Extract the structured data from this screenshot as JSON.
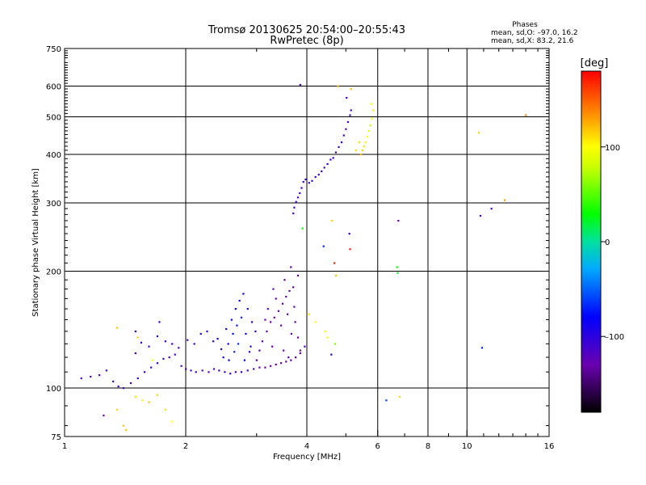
{
  "chart_data": {
    "type": "scatter",
    "title": "Tromsø 20130625 20:54:00–20:55:43",
    "subtitle": "RwPretec (8p)",
    "stats": {
      "heading": "Phases",
      "line_o": "mean, sd,O: –97.0, 16.2",
      "line_x": "mean, sd,X:  83.2, 21.6"
    },
    "xlabel": "Frequency [MHz]",
    "ylabel": "Stationary phase Virtual Height [km]",
    "x_scale": "log",
    "y_scale": "log",
    "xlim": [
      1,
      16
    ],
    "ylim": [
      75,
      750
    ],
    "x_ticks": [
      {
        "value": 1,
        "label": "1"
      },
      {
        "value": 2,
        "label": "2"
      },
      {
        "value": 4,
        "label": "4"
      },
      {
        "value": 6,
        "label": "6"
      },
      {
        "value": 8,
        "label": "8"
      },
      {
        "value": 10,
        "label": "10"
      },
      {
        "value": 16,
        "label": "16"
      }
    ],
    "y_ticks": [
      {
        "value": 75,
        "label": "75"
      },
      {
        "value": 100,
        "label": "100"
      },
      {
        "value": 200,
        "label": "200"
      },
      {
        "value": 300,
        "label": "300"
      },
      {
        "value": 400,
        "label": "400"
      },
      {
        "value": 500,
        "label": "500"
      },
      {
        "value": 600,
        "label": "600"
      },
      {
        "value": 750,
        "label": "750"
      }
    ],
    "x_grid": [
      2,
      4,
      6,
      8,
      10
    ],
    "y_grid": [
      100,
      200,
      300,
      400,
      500,
      600
    ],
    "colorbar": {
      "label": "[deg]",
      "range": [
        -180,
        180
      ],
      "ticks": [
        {
          "value": 100,
          "label": "100"
        },
        {
          "value": 0,
          "label": "0"
        },
        {
          "value": -100,
          "label": "–100"
        }
      ]
    },
    "series": [
      {
        "columns": [
          "frequency_mhz",
          "virtual_height_km",
          "phase_deg"
        ],
        "points": [
          [
            1.1,
            106,
            -120
          ],
          [
            1.16,
            107,
            -118
          ],
          [
            1.22,
            108,
            -115
          ],
          [
            1.27,
            111,
            -112
          ],
          [
            1.32,
            104,
            -110
          ],
          [
            1.36,
            101,
            -108
          ],
          [
            1.4,
            100,
            -112
          ],
          [
            1.46,
            103,
            -110
          ],
          [
            1.52,
            106,
            -105
          ],
          [
            1.58,
            110,
            -110
          ],
          [
            1.64,
            113,
            -108
          ],
          [
            1.7,
            116,
            -110
          ],
          [
            1.76,
            119,
            -112
          ],
          [
            1.82,
            120,
            -115
          ],
          [
            1.88,
            122,
            -110
          ],
          [
            1.95,
            114,
            -118
          ],
          [
            2.0,
            112,
            -115
          ],
          [
            2.06,
            111,
            -118
          ],
          [
            2.12,
            110,
            -120
          ],
          [
            2.2,
            111,
            -115
          ],
          [
            2.28,
            110,
            -118
          ],
          [
            2.35,
            112,
            -116
          ],
          [
            2.42,
            111,
            -112
          ],
          [
            2.5,
            110,
            -115
          ],
          [
            2.58,
            109,
            -110
          ],
          [
            2.66,
            110,
            -112
          ],
          [
            2.75,
            110,
            -105
          ],
          [
            2.85,
            111,
            -110
          ],
          [
            2.95,
            112,
            -118
          ],
          [
            3.05,
            113,
            -125
          ],
          [
            3.15,
            113,
            -128
          ],
          [
            3.25,
            114,
            -130
          ],
          [
            3.35,
            115,
            -132
          ],
          [
            3.45,
            116,
            -130
          ],
          [
            3.55,
            117,
            -128
          ],
          [
            3.65,
            118,
            -126
          ],
          [
            3.75,
            120,
            -124
          ],
          [
            3.85,
            123,
            -122
          ],
          [
            3.95,
            128,
            -120
          ],
          [
            1.5,
            123,
            -110
          ],
          [
            1.55,
            131,
            -108
          ],
          [
            1.62,
            128,
            -112
          ],
          [
            1.7,
            136,
            -105
          ],
          [
            1.78,
            132,
            -110
          ],
          [
            1.85,
            130,
            -105
          ],
          [
            1.92,
            127,
            -112
          ],
          [
            2.02,
            133,
            -108
          ],
          [
            2.1,
            130,
            -110
          ],
          [
            2.18,
            138,
            -104
          ],
          [
            2.26,
            140,
            -100
          ],
          [
            2.34,
            132,
            -106
          ],
          [
            2.45,
            126,
            -100
          ],
          [
            2.52,
            142,
            -90
          ],
          [
            2.6,
            150,
            -85
          ],
          [
            2.66,
            160,
            -80
          ],
          [
            2.72,
            168,
            -85
          ],
          [
            2.78,
            175,
            -88
          ],
          [
            2.85,
            160,
            -92
          ],
          [
            2.92,
            148,
            -100
          ],
          [
            2.98,
            140,
            -104
          ],
          [
            2.55,
            130,
            -82
          ],
          [
            2.62,
            138,
            -75
          ],
          [
            2.68,
            145,
            -72
          ],
          [
            2.75,
            152,
            -70
          ],
          [
            2.82,
            138,
            -80
          ],
          [
            2.9,
            128,
            -90
          ],
          [
            2.4,
            134,
            -88
          ],
          [
            2.48,
            120,
            -92
          ],
          [
            2.56,
            118,
            -78
          ],
          [
            2.64,
            124,
            -70
          ],
          [
            2.7,
            130,
            -65
          ],
          [
            2.8,
            118,
            -85
          ],
          [
            2.88,
            124,
            -95
          ],
          [
            3.05,
            125,
            -118
          ],
          [
            3.1,
            132,
            -125
          ],
          [
            3.18,
            140,
            -130
          ],
          [
            3.25,
            148,
            -128
          ],
          [
            3.32,
            152,
            -130
          ],
          [
            3.4,
            158,
            -132
          ],
          [
            3.48,
            165,
            -135
          ],
          [
            3.55,
            172,
            -130
          ],
          [
            3.62,
            178,
            -132
          ],
          [
            3.7,
            182,
            -135
          ],
          [
            3.2,
            160,
            -128
          ],
          [
            3.35,
            170,
            -133
          ],
          [
            3.45,
            145,
            -127
          ],
          [
            3.58,
            155,
            -129
          ],
          [
            3.66,
            138,
            -131
          ],
          [
            3.74,
            148,
            -133
          ],
          [
            3.8,
            135,
            -130
          ],
          [
            3.85,
            125,
            -126
          ],
          [
            3.5,
            125,
            -124
          ],
          [
            3.15,
            150,
            -122
          ],
          [
            3.0,
            118,
            -120
          ],
          [
            3.28,
            128,
            -125
          ],
          [
            3.6,
            120,
            -127
          ],
          [
            3.72,
            162,
            -134
          ],
          [
            3.52,
            190,
            -136
          ],
          [
            3.8,
            195,
            -138
          ],
          [
            3.3,
            180,
            -130
          ],
          [
            3.65,
            205,
            -135
          ],
          [
            3.7,
            282,
            -115
          ],
          [
            3.72,
            292,
            -110
          ],
          [
            3.76,
            302,
            -112
          ],
          [
            3.8,
            310,
            -115
          ],
          [
            3.84,
            318,
            -112
          ],
          [
            3.88,
            328,
            -110
          ],
          [
            3.92,
            340,
            -108
          ],
          [
            3.97,
            345,
            -110
          ],
          [
            4.05,
            338,
            -112
          ],
          [
            4.12,
            342,
            -110
          ],
          [
            4.2,
            350,
            -108
          ],
          [
            4.28,
            355,
            -112
          ],
          [
            4.35,
            362,
            -110
          ],
          [
            4.42,
            370,
            -108
          ],
          [
            4.5,
            378,
            -105
          ],
          [
            4.58,
            388,
            -110
          ],
          [
            4.65,
            392,
            -108
          ],
          [
            4.72,
            405,
            -112
          ],
          [
            4.8,
            418,
            -110
          ],
          [
            4.88,
            430,
            -108
          ],
          [
            4.94,
            448,
            -110
          ],
          [
            5.0,
            465,
            -112
          ],
          [
            5.06,
            485,
            -110
          ],
          [
            5.12,
            505,
            -108
          ],
          [
            5.15,
            520,
            -110
          ],
          [
            5.02,
            560,
            -115
          ],
          [
            3.85,
            605,
            -108
          ],
          [
            5.45,
            400,
            120
          ],
          [
            5.5,
            410,
            115
          ],
          [
            5.55,
            420,
            110
          ],
          [
            5.6,
            430,
            105
          ],
          [
            5.65,
            445,
            100
          ],
          [
            5.7,
            460,
            85
          ],
          [
            5.75,
            475,
            75
          ],
          [
            5.8,
            495,
            100
          ],
          [
            5.85,
            520,
            110
          ],
          [
            5.78,
            540,
            95
          ],
          [
            5.15,
            590,
            120
          ],
          [
            4.78,
            600,
            125
          ],
          [
            5.3,
            410,
            110
          ],
          [
            5.4,
            430,
            112
          ],
          [
            4.62,
            270,
            115
          ],
          [
            4.4,
            232,
            -70
          ],
          [
            4.68,
            210,
            170
          ],
          [
            4.72,
            195,
            120
          ],
          [
            5.1,
            250,
            -110
          ],
          [
            5.12,
            228,
            175
          ],
          [
            4.05,
            155,
            110
          ],
          [
            4.2,
            148,
            100
          ],
          [
            4.45,
            140,
            105
          ],
          [
            4.5,
            135,
            95
          ],
          [
            4.7,
            130,
            60
          ],
          [
            4.6,
            122,
            -95
          ],
          [
            3.9,
            258,
            30
          ],
          [
            6.3,
            93,
            -60
          ],
          [
            6.8,
            95,
            115
          ],
          [
            6.75,
            270,
            -130
          ],
          [
            6.7,
            205,
            30
          ],
          [
            6.72,
            198,
            20
          ],
          [
            10.7,
            455,
            115
          ],
          [
            10.8,
            278,
            -120
          ],
          [
            11.5,
            290,
            -115
          ],
          [
            12.4,
            305,
            130
          ],
          [
            14.0,
            505,
            140
          ],
          [
            10.9,
            127,
            -70
          ],
          [
            1.25,
            85,
            -130
          ],
          [
            1.35,
            88,
            115
          ],
          [
            1.42,
            78,
            120
          ],
          [
            1.5,
            95,
            110
          ],
          [
            1.56,
            93,
            105
          ],
          [
            1.62,
            92,
            120
          ],
          [
            1.7,
            96,
            115
          ],
          [
            1.78,
            88,
            110
          ],
          [
            1.85,
            82,
            100
          ],
          [
            1.4,
            80,
            120
          ],
          [
            1.65,
            118,
            100
          ],
          [
            1.52,
            135,
            115
          ],
          [
            1.35,
            143,
            120
          ],
          [
            1.5,
            140,
            -105
          ],
          [
            1.72,
            148,
            -100
          ]
        ]
      }
    ]
  }
}
